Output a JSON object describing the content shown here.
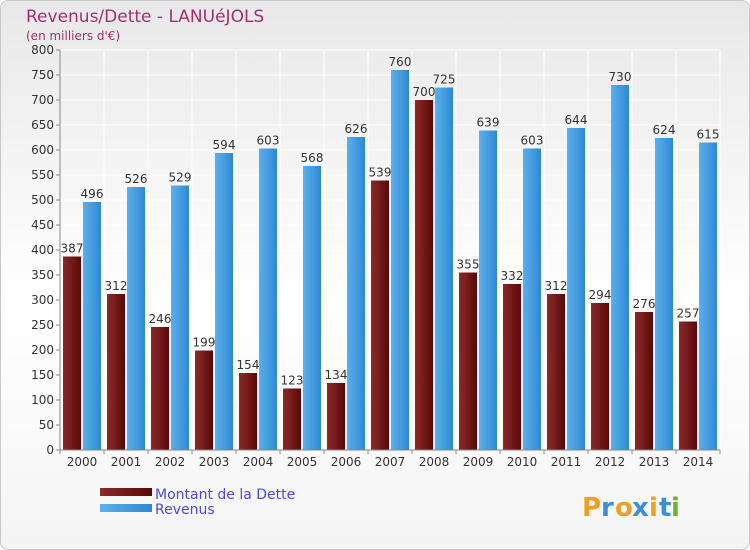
{
  "chart_data": {
    "type": "bar",
    "title": "Revenus/Dette - LANUéJOLS",
    "subtitle": "(en milliers d'€)",
    "categories": [
      "2000",
      "2001",
      "2002",
      "2003",
      "2004",
      "2005",
      "2006",
      "2007",
      "2008",
      "2009",
      "2010",
      "2011",
      "2012",
      "2013",
      "2014"
    ],
    "series": [
      {
        "name": "Montant de la Dette",
        "color": "#7a1a1a",
        "values": [
          387,
          312,
          246,
          199,
          154,
          123,
          134,
          539,
          700,
          355,
          332,
          312,
          294,
          276,
          257
        ]
      },
      {
        "name": "Revenus",
        "color": "#3a90d8",
        "values": [
          496,
          526,
          529,
          594,
          603,
          568,
          626,
          760,
          725,
          639,
          603,
          644,
          730,
          624,
          615
        ]
      }
    ],
    "ylim": [
      0,
      800
    ],
    "yticks": [
      0,
      50,
      100,
      150,
      200,
      250,
      300,
      350,
      400,
      450,
      500,
      550,
      600,
      650,
      700,
      750,
      800
    ],
    "grid": true,
    "legend_position": "bottom-left"
  },
  "logo": {
    "text": "Proxiti",
    "letters": [
      "P",
      "r",
      "o",
      "x",
      "i",
      "t",
      "i"
    ],
    "colors": [
      "#f0a020",
      "#3a90d8",
      "#f0a020",
      "#3a90d8",
      "#f0a020",
      "#3a90d8",
      "#70b030"
    ]
  }
}
